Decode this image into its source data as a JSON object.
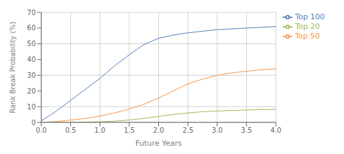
{
  "chart_data": {
    "type": "line",
    "xlabel": "Future Years",
    "ylabel": "Rank Break Probability (%)",
    "x": [
      0,
      0.25,
      0.5,
      0.75,
      1.0,
      1.25,
      1.5,
      1.75,
      2.0,
      2.25,
      2.5,
      2.75,
      3.0,
      3.25,
      3.5,
      3.75,
      4.0
    ],
    "series": [
      {
        "name": "Top 100",
        "color": "#4f81bd",
        "values": [
          1.0,
          7.0,
          14.0,
          21.0,
          28.0,
          36.0,
          43.0,
          49.5,
          53.5,
          55.5,
          57.0,
          58.0,
          59.0,
          59.5,
          60.0,
          60.5,
          61.0
        ]
      },
      {
        "name": "Top 50",
        "color": "#f79646",
        "values": [
          0.0,
          0.5,
          1.5,
          2.5,
          4.0,
          6.0,
          8.5,
          11.5,
          15.5,
          20.0,
          24.5,
          27.5,
          30.0,
          31.5,
          32.5,
          33.5,
          34.0
        ]
      },
      {
        "name": "Top 20",
        "color": "#9bbb59",
        "values": [
          0.0,
          0.05,
          0.1,
          0.2,
          0.4,
          0.8,
          1.5,
          2.5,
          3.8,
          5.0,
          6.0,
          6.8,
          7.2,
          7.6,
          7.9,
          8.1,
          8.3
        ]
      }
    ],
    "xlim": [
      0,
      4
    ],
    "ylim": [
      0,
      70
    ],
    "xticks": [
      {
        "value": 0,
        "label": "0.0"
      },
      0.5,
      {
        "value": 1,
        "label": "1.0"
      },
      1.5,
      {
        "value": 2,
        "label": "2.0"
      },
      2.5,
      {
        "value": 3,
        "label": "3.0"
      },
      3.5,
      {
        "value": 4,
        "label": "4.0"
      }
    ],
    "yticks": [
      0,
      10,
      20,
      30,
      40,
      50,
      60,
      70
    ],
    "grid": true,
    "legend": "right"
  }
}
